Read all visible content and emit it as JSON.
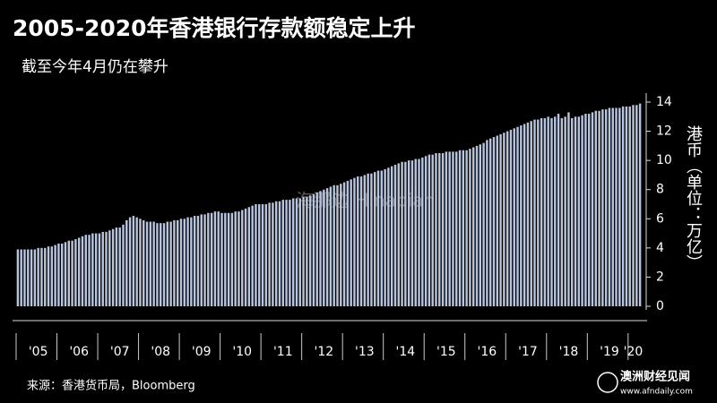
{
  "chart_data": {
    "type": "bar",
    "title": "2005-2020年香港银行存款额稳定上升",
    "subtitle": "截至今年4月仍在攀升",
    "y_axis_label": "港币（单位：万亿）",
    "source": "来源：香港货币局，Bloomberg",
    "watermark": "海那边 Hinabian",
    "brand": "澳洲财经见闻",
    "brand_url": "www.afndaily.com",
    "color": "#b9c5de",
    "ylim": [
      0,
      14
    ],
    "yticks": [
      0,
      2,
      4,
      6,
      8,
      10,
      12,
      14
    ],
    "grid": false,
    "categories": [
      null,
      null,
      null,
      null,
      null,
      null,
      "'05",
      null,
      null,
      null,
      null,
      null,
      null,
      null,
      null,
      null,
      null,
      null,
      "'06",
      null,
      null,
      null,
      null,
      null,
      null,
      null,
      null,
      null,
      null,
      null,
      "'07",
      null,
      null,
      null,
      null,
      null,
      null,
      null,
      null,
      null,
      null,
      null,
      "'08",
      null,
      null,
      null,
      null,
      null,
      null,
      null,
      null,
      null,
      null,
      null,
      "'09",
      null,
      null,
      null,
      null,
      null,
      null,
      null,
      null,
      null,
      null,
      null,
      "'10",
      null,
      null,
      null,
      null,
      null,
      null,
      null,
      null,
      null,
      null,
      null,
      "'11",
      null,
      null,
      null,
      null,
      null,
      null,
      null,
      null,
      null,
      null,
      null,
      "'12",
      null,
      null,
      null,
      null,
      null,
      null,
      null,
      null,
      null,
      null,
      null,
      "'13",
      null,
      null,
      null,
      null,
      null,
      null,
      null,
      null,
      null,
      null,
      null,
      "'14",
      null,
      null,
      null,
      null,
      null,
      null,
      null,
      null,
      null,
      null,
      null,
      "'15",
      null,
      null,
      null,
      null,
      null,
      null,
      null,
      null,
      null,
      null,
      null,
      "'16",
      null,
      null,
      null,
      null,
      null,
      null,
      null,
      null,
      null,
      null,
      null,
      "'17",
      null,
      null,
      null,
      null,
      null,
      null,
      null,
      null,
      null,
      null,
      null,
      "'18",
      null,
      null,
      null,
      null,
      null,
      null,
      null,
      null,
      null,
      null,
      null,
      "'19",
      null,
      null,
      null,
      null,
      null,
      null,
      "'20",
      null,
      null
    ],
    "values": [
      3.9,
      3.9,
      3.9,
      3.9,
      3.9,
      3.9,
      4.0,
      4.0,
      4.0,
      4.1,
      4.1,
      4.2,
      4.3,
      4.3,
      4.4,
      4.5,
      4.5,
      4.6,
      4.7,
      4.8,
      4.9,
      4.9,
      5.0,
      5.0,
      5.0,
      5.1,
      5.1,
      5.2,
      5.3,
      5.4,
      5.4,
      5.6,
      5.9,
      6.1,
      6.2,
      6.1,
      6.0,
      5.9,
      5.8,
      5.8,
      5.8,
      5.7,
      5.7,
      5.7,
      5.8,
      5.8,
      5.9,
      5.9,
      6.0,
      6.0,
      6.1,
      6.1,
      6.2,
      6.2,
      6.3,
      6.3,
      6.4,
      6.4,
      6.5,
      6.5,
      6.4,
      6.4,
      6.4,
      6.4,
      6.5,
      6.5,
      6.6,
      6.7,
      6.8,
      6.9,
      7.0,
      7.0,
      7.0,
      7.0,
      7.1,
      7.1,
      7.2,
      7.2,
      7.3,
      7.3,
      7.3,
      7.4,
      7.4,
      7.4,
      7.5,
      7.5,
      7.6,
      7.7,
      7.8,
      7.9,
      8.0,
      8.1,
      8.2,
      8.3,
      8.3,
      8.4,
      8.5,
      8.6,
      8.7,
      8.8,
      8.9,
      8.9,
      9.0,
      9.1,
      9.1,
      9.2,
      9.3,
      9.3,
      9.4,
      9.5,
      9.6,
      9.7,
      9.8,
      9.9,
      9.9,
      10.0,
      10.0,
      10.1,
      10.1,
      10.2,
      10.3,
      10.4,
      10.4,
      10.5,
      10.5,
      10.5,
      10.6,
      10.6,
      10.6,
      10.6,
      10.7,
      10.7,
      10.7,
      10.8,
      10.9,
      11.0,
      11.1,
      11.2,
      11.4,
      11.5,
      11.6,
      11.7,
      11.8,
      11.9,
      12.0,
      12.1,
      12.2,
      12.3,
      12.4,
      12.5,
      12.6,
      12.7,
      12.8,
      12.8,
      12.9,
      12.9,
      13.0,
      12.9,
      13.0,
      13.2,
      12.9,
      13.0,
      13.3,
      12.9,
      13.0,
      13.0,
      13.1,
      13.2,
      13.2,
      13.3,
      13.4,
      13.4,
      13.5,
      13.5,
      13.6,
      13.6,
      13.6,
      13.6,
      13.7,
      13.7,
      13.7,
      13.8,
      13.8,
      13.9
    ]
  }
}
